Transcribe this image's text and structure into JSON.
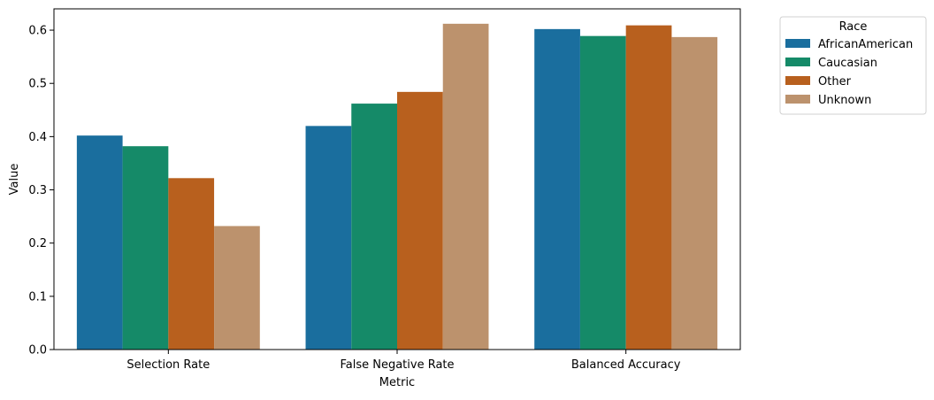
{
  "chart_data": {
    "type": "bar",
    "xlabel": "Metric",
    "ylabel": "Value",
    "categories": [
      "Selection Rate",
      "False Negative Rate",
      "Balanced Accuracy"
    ],
    "ylim": [
      0,
      0.64
    ],
    "yticks": [
      "0.0",
      "0.1",
      "0.2",
      "0.3",
      "0.4",
      "0.5",
      "0.6"
    ],
    "grid": false,
    "legend": {
      "title": "Race",
      "placement": "outside-top-right"
    },
    "series": [
      {
        "name": "AfricanAmerican",
        "color": "#1a6e9e",
        "values": [
          0.402,
          0.42,
          0.602
        ]
      },
      {
        "name": "Caucasian",
        "color": "#158a68",
        "values": [
          0.382,
          0.462,
          0.589
        ]
      },
      {
        "name": "Other",
        "color": "#b8601e",
        "values": [
          0.322,
          0.484,
          0.609
        ]
      },
      {
        "name": "Unknown",
        "color": "#bc926d",
        "values": [
          0.232,
          0.612,
          0.587
        ]
      }
    ]
  }
}
